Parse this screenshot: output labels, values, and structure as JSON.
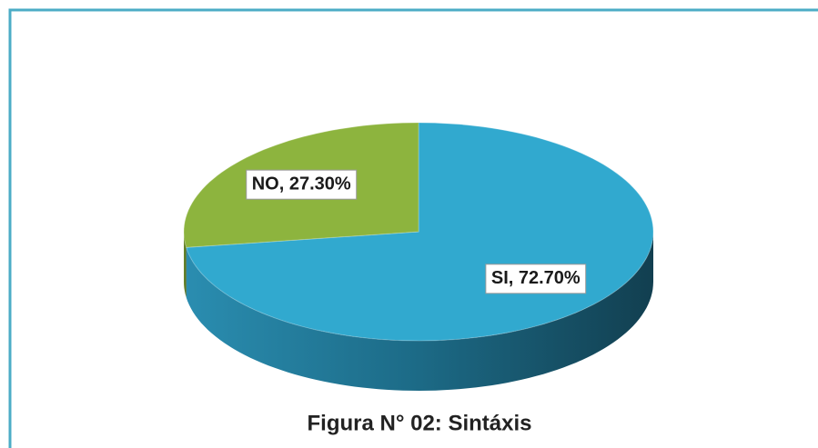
{
  "chart_data": {
    "type": "pie",
    "title": "Figura N° 02: Sintáxis",
    "categories": [
      "SI",
      "NO"
    ],
    "values": [
      72.7,
      27.3
    ],
    "value_labels": [
      "SI, 72.70%",
      "NO, 27.30%"
    ],
    "colors": [
      "#31a9cf",
      "#8db43e"
    ]
  }
}
